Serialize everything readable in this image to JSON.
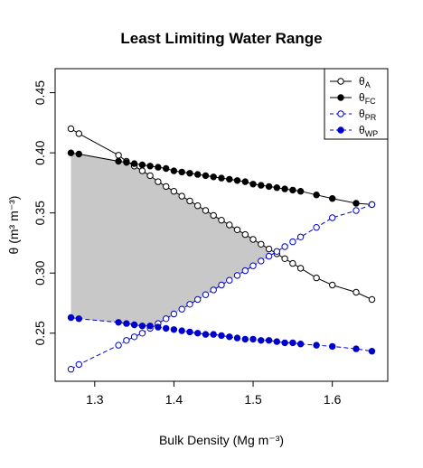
{
  "chart_data": {
    "type": "line",
    "title": "Least Limiting Water Range",
    "xlabel": "Bulk Density (Mg m⁻³)",
    "ylabel": "θ (m³ m⁻³)",
    "xlim": [
      1.25,
      1.67
    ],
    "ylim": [
      0.21,
      0.47
    ],
    "x_ticks": [
      1.3,
      1.4,
      1.5,
      1.6
    ],
    "y_ticks": [
      0.25,
      0.3,
      0.35,
      0.4,
      0.45
    ],
    "x_tick_labels": [
      "1.3",
      "1.4",
      "1.5",
      "1.6"
    ],
    "y_tick_labels": [
      "0.25",
      "0.30",
      "0.35",
      "0.40",
      "0.45"
    ],
    "grid": false,
    "legend_position": "top-right",
    "shaded_region": "Least Limiting Water Range between upper limit min(θA, θFC) and lower limit max(θWP, θPR)",
    "x": [
      1.27,
      1.28,
      1.33,
      1.34,
      1.35,
      1.36,
      1.37,
      1.38,
      1.39,
      1.4,
      1.41,
      1.42,
      1.43,
      1.44,
      1.45,
      1.46,
      1.47,
      1.48,
      1.49,
      1.5,
      1.51,
      1.52,
      1.53,
      1.54,
      1.55,
      1.56,
      1.58,
      1.6,
      1.63,
      1.65
    ],
    "series": [
      {
        "name": "θ",
        "sub": "A",
        "color": "#000000",
        "filled": false,
        "dashed": false,
        "values": [
          0.42,
          0.416,
          0.398,
          0.393,
          0.389,
          0.385,
          0.381,
          0.376,
          0.372,
          0.368,
          0.364,
          0.36,
          0.356,
          0.352,
          0.348,
          0.344,
          0.34,
          0.336,
          0.332,
          0.328,
          0.324,
          0.32,
          0.316,
          0.312,
          0.308,
          0.304,
          0.296,
          0.29,
          0.284,
          0.278
        ]
      },
      {
        "name": "θ",
        "sub": "FC",
        "color": "#000000",
        "filled": true,
        "dashed": false,
        "values": [
          0.4,
          0.399,
          0.393,
          0.392,
          0.391,
          0.39,
          0.389,
          0.388,
          0.387,
          0.385,
          0.384,
          0.383,
          0.382,
          0.381,
          0.38,
          0.379,
          0.378,
          0.377,
          0.376,
          0.374,
          0.373,
          0.372,
          0.371,
          0.37,
          0.369,
          0.368,
          0.365,
          0.362,
          0.358,
          0.357
        ]
      },
      {
        "name": "θ",
        "sub": "PR",
        "color": "#0000cc",
        "filled": false,
        "dashed": true,
        "values": [
          0.22,
          0.224,
          0.24,
          0.244,
          0.247,
          0.25,
          0.254,
          0.258,
          0.262,
          0.266,
          0.27,
          0.274,
          0.278,
          0.282,
          0.286,
          0.29,
          0.294,
          0.298,
          0.302,
          0.306,
          0.31,
          0.314,
          0.318,
          0.322,
          0.326,
          0.33,
          0.338,
          0.346,
          0.352,
          0.357
        ]
      },
      {
        "name": "θ",
        "sub": "WP",
        "color": "#0000cc",
        "filled": true,
        "dashed": true,
        "values": [
          0.263,
          0.262,
          0.259,
          0.258,
          0.257,
          0.256,
          0.256,
          0.255,
          0.254,
          0.253,
          0.252,
          0.251,
          0.25,
          0.249,
          0.249,
          0.248,
          0.247,
          0.246,
          0.245,
          0.245,
          0.244,
          0.244,
          0.243,
          0.242,
          0.242,
          0.241,
          0.24,
          0.239,
          0.237,
          0.235
        ]
      }
    ]
  }
}
